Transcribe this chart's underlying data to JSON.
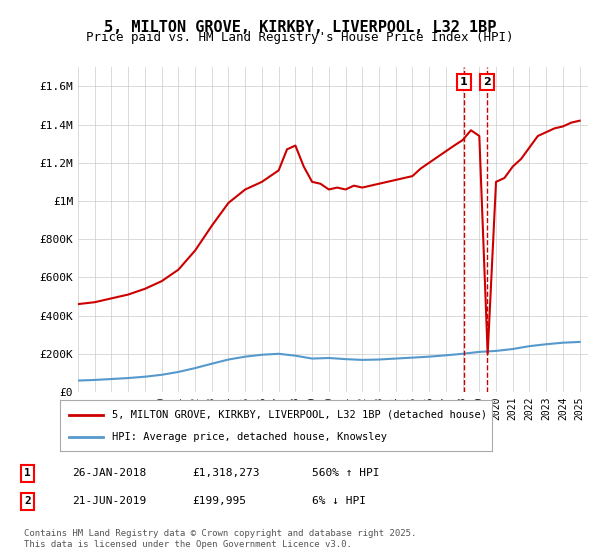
{
  "title": "5, MILTON GROVE, KIRKBY, LIVERPOOL, L32 1BP",
  "subtitle": "Price paid vs. HM Land Registry's House Price Index (HPI)",
  "ylabel_ticks": [
    "£0",
    "£200K",
    "£400K",
    "£600K",
    "£800K",
    "£1M",
    "£1.2M",
    "£1.4M",
    "£1.6M"
  ],
  "ytick_values": [
    0,
    200000,
    400000,
    600000,
    800000,
    1000000,
    1200000,
    1400000,
    1600000
  ],
  "ylim": [
    0,
    1700000
  ],
  "xlim_start": 1995.0,
  "xlim_end": 2025.5,
  "sale1_year": 2018.07,
  "sale1_price": 1318273,
  "sale1_label": "1",
  "sale1_date": "26-JAN-2018",
  "sale1_price_str": "£1,318,273",
  "sale1_hpi": "560% ↑ HPI",
  "sale2_year": 2019.47,
  "sale2_price": 199995,
  "sale2_label": "2",
  "sale2_date": "21-JUN-2019",
  "sale2_price_str": "£199,995",
  "sale2_hpi": "6% ↓ HPI",
  "red_line_color": "#cc0000",
  "blue_line_color": "#5599cc",
  "grid_color": "#cccccc",
  "background_color": "#ffffff",
  "legend_label_red": "5, MILTON GROVE, KIRKBY, LIVERPOOL, L32 1BP (detached house)",
  "legend_label_blue": "HPI: Average price, detached house, Knowsley",
  "footer": "Contains HM Land Registry data © Crown copyright and database right 2025.\nThis data is licensed under the Open Government Licence v3.0.",
  "hpi_years": [
    1995,
    1996,
    1997,
    1998,
    1999,
    2000,
    2001,
    2002,
    2003,
    2004,
    2005,
    2006,
    2007,
    2008,
    2009,
    2010,
    2011,
    2012,
    2013,
    2014,
    2015,
    2016,
    2017,
    2018,
    2019,
    2020,
    2021,
    2022,
    2023,
    2024,
    2025
  ],
  "hpi_values": [
    60000,
    63000,
    68000,
    73000,
    80000,
    90000,
    105000,
    125000,
    148000,
    170000,
    185000,
    195000,
    200000,
    190000,
    175000,
    178000,
    172000,
    168000,
    170000,
    175000,
    180000,
    185000,
    192000,
    200000,
    210000,
    215000,
    225000,
    240000,
    250000,
    258000,
    262000
  ],
  "red_years": [
    1995,
    1996,
    1997,
    1998,
    1999,
    2000,
    2001,
    2002,
    2003,
    2004,
    2005,
    2006,
    2007,
    2007.5,
    2008,
    2008.5,
    2009,
    2009.5,
    2010,
    2010.5,
    2011,
    2011.5,
    2012,
    2012.5,
    2013,
    2013.5,
    2014,
    2014.5,
    2015,
    2015.5,
    2016,
    2016.5,
    2017,
    2017.5,
    2018,
    2018.5,
    2019,
    2019.5,
    2020,
    2020.5,
    2021,
    2021.5,
    2022,
    2022.5,
    2023,
    2023.5,
    2024,
    2024.5,
    2025
  ],
  "red_values": [
    460000,
    470000,
    490000,
    510000,
    540000,
    580000,
    640000,
    740000,
    870000,
    990000,
    1060000,
    1100000,
    1160000,
    1270000,
    1290000,
    1180000,
    1100000,
    1090000,
    1060000,
    1070000,
    1060000,
    1080000,
    1070000,
    1080000,
    1090000,
    1100000,
    1110000,
    1120000,
    1130000,
    1170000,
    1200000,
    1230000,
    1260000,
    1290000,
    1318273,
    1370000,
    1340000,
    199995,
    1100000,
    1120000,
    1180000,
    1220000,
    1280000,
    1340000,
    1360000,
    1380000,
    1390000,
    1410000,
    1420000
  ]
}
